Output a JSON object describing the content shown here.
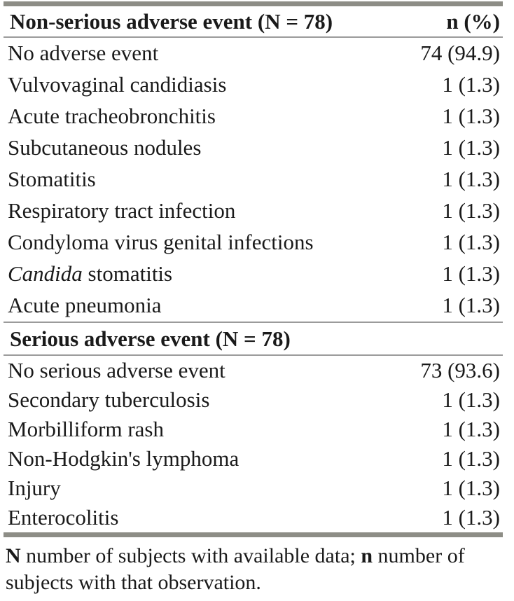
{
  "colors": {
    "background": "#ffffff",
    "text": "#1a1a1a",
    "rule_thick": "#8d8d86",
    "rule_thin": "#9b9b9b"
  },
  "table": {
    "columns": [
      "Non-serious adverse event (N = 78)",
      "n (%)"
    ],
    "non_serious_rows": [
      {
        "label": "No adverse event",
        "value": "74 (94.9)"
      },
      {
        "label": "Vulvovaginal candidiasis",
        "value": "1 (1.3)"
      },
      {
        "label": "Acute tracheobronchitis",
        "value": "1 (1.3)"
      },
      {
        "label": "Subcutaneous nodules",
        "value": "1 (1.3)"
      },
      {
        "label": "Stomatitis",
        "value": "1 (1.3)"
      },
      {
        "label": "Respiratory tract infection",
        "value": "1 (1.3)"
      },
      {
        "label": "Condyloma virus genital infections",
        "value": "1 (1.3)"
      },
      {
        "label_segments": [
          {
            "text": "Candida",
            "italic": true
          },
          {
            "text": " stomatitis"
          }
        ],
        "value": "1 (1.3)"
      },
      {
        "label": "Acute pneumonia",
        "value": "1 (1.3)"
      }
    ],
    "serious_section_header": "Serious adverse event (N = 78)",
    "serious_rows": [
      {
        "label": "No serious adverse event",
        "value": "73 (93.6)"
      },
      {
        "label": "Secondary tuberculosis",
        "value": "1 (1.3)"
      },
      {
        "label": "Morbilliform rash",
        "value": "1 (1.3)"
      },
      {
        "label": "Non-Hodgkin's lymphoma",
        "value": "1 (1.3)"
      },
      {
        "label": "Injury",
        "value": "1 (1.3)"
      },
      {
        "label": "Enterocolitis",
        "value": "1 (1.3)"
      }
    ],
    "footnote_segments": [
      {
        "text": "N",
        "bold": true
      },
      {
        "text": " number of subjects with available data; "
      },
      {
        "text": "n",
        "bold": true
      },
      {
        "text": " number of subjects with that observation."
      }
    ]
  }
}
